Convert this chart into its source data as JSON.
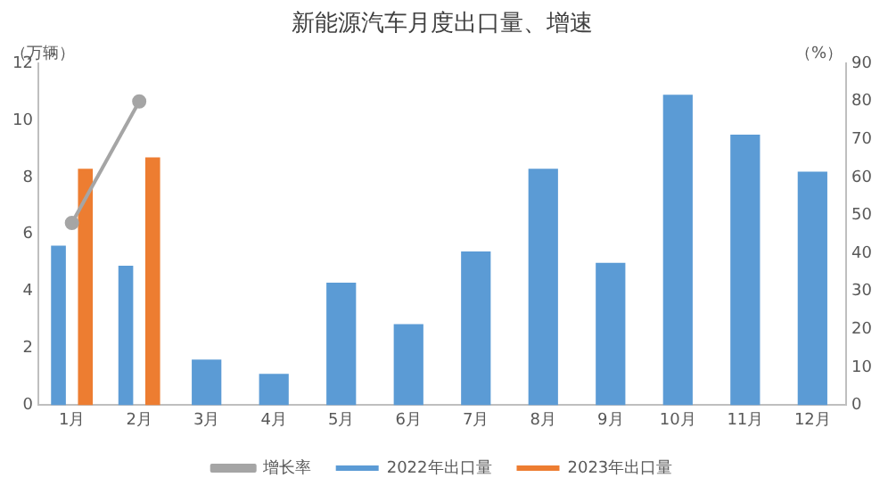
{
  "chart_data": {
    "type": "bar",
    "title": "新能源汽车月度出口量、增速",
    "ylabel": "（万辆）",
    "y2label": "（%）",
    "categories": [
      "1月",
      "2月",
      "3月",
      "4月",
      "5月",
      "6月",
      "7月",
      "8月",
      "9月",
      "10月",
      "11月",
      "12月"
    ],
    "series": [
      {
        "name": "2022年出口量",
        "color": "#5b9bd5",
        "values": [
          5.6,
          4.9,
          1.6,
          1.1,
          4.3,
          2.85,
          5.4,
          8.3,
          5.0,
          10.9,
          9.5,
          8.2
        ]
      },
      {
        "name": "2023年出口量",
        "color": "#ed7d31",
        "values": [
          8.3,
          8.7,
          null,
          null,
          null,
          null,
          null,
          null,
          null,
          null,
          null,
          null
        ]
      },
      {
        "name": "增长率",
        "type": "line",
        "axis": "y2",
        "color": "#a5a5a5",
        "marker": "circle",
        "values": [
          48,
          80,
          null,
          null,
          null,
          null,
          null,
          null,
          null,
          null,
          null,
          null
        ]
      }
    ],
    "ylim": [
      0,
      12
    ],
    "yticks": [
      0,
      2,
      4,
      6,
      8,
      10,
      12
    ],
    "y2lim": [
      0,
      90
    ],
    "y2ticks": [
      0,
      10,
      20,
      30,
      40,
      50,
      60,
      70,
      80,
      90
    ],
    "grid": false,
    "legend": "bottom"
  }
}
